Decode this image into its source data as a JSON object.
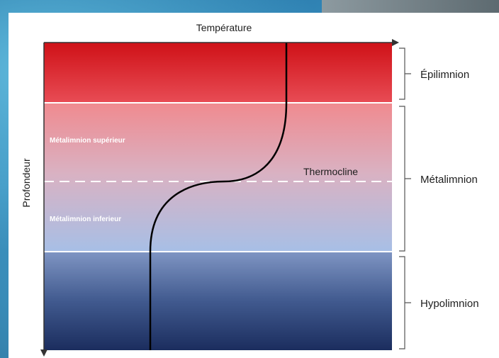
{
  "diagram": {
    "axis_x_label": "Température",
    "axis_y_label": "Profondeur",
    "annotation_thermocline": "Thermocline",
    "zone_labels": {
      "upper_metalimnion": "Métalimnion supérieur",
      "lower_metalimnion": "Métalimnion inferieur"
    },
    "layers": [
      {
        "name": "Épilimnion"
      },
      {
        "name": "Métalimnion"
      },
      {
        "name": "Hypolimnion"
      }
    ]
  },
  "colors": {
    "warm": "#d91f26",
    "mid": "#f0a2a6",
    "cool": "#a9c0e6",
    "cold": "#1e3260",
    "curve": "#000000"
  }
}
